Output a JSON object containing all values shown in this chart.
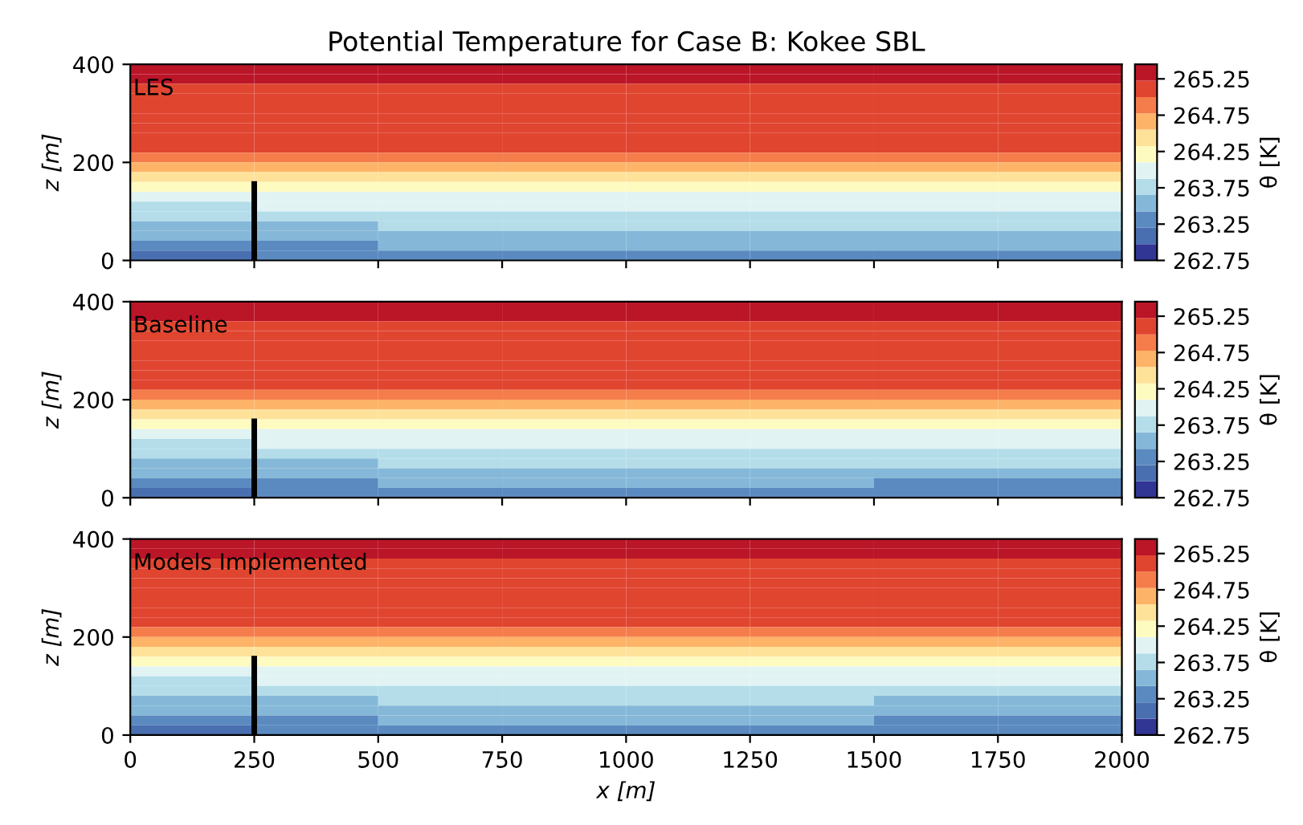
{
  "chart_data": [
    {
      "type": "heatmap",
      "title": "Potential Temperature for Case B: Kokee SBL",
      "ylabel": "z [m]",
      "clabel": "θ [K]",
      "annotations": [
        "LES"
      ],
      "tick_labels": "y",
      "x": [
        125,
        375,
        625,
        875,
        1125,
        1375,
        1625,
        1875
      ],
      "xlim": [
        0,
        2000
      ],
      "xticks": [
        0,
        250,
        500,
        750,
        1000,
        1250,
        1500,
        1750,
        2000
      ],
      "ylim": [
        0,
        400
      ],
      "yticks": [
        0,
        200,
        400
      ],
      "clim": [
        262.75,
        265.45
      ],
      "cticks": [
        262.75,
        263.25,
        263.75,
        264.25,
        264.75,
        265.25
      ],
      "colors": [
        "#313695",
        "#4a6fb0",
        "#5a8ac0",
        "#85b8d8",
        "#b4dde9",
        "#e2f3f3",
        "#fefbc0",
        "#fee29a",
        "#fdb468",
        "#f57d4b",
        "#e04530",
        "#bb1528"
      ],
      "ref_lines": [
        {
          "axis": "x",
          "value": 250,
          "color": "#000000"
        }
      ],
      "cells": [
        [
          265.34,
          265.34,
          265.34,
          265.34,
          265.34,
          265.34,
          265.34,
          265.34
        ],
        [
          265.34,
          265.34,
          265.34,
          265.34,
          265.34,
          265.34,
          265.34,
          265.34
        ],
        [
          265.11,
          265.11,
          265.11,
          265.11,
          265.11,
          265.11,
          265.11,
          265.11
        ],
        [
          265.11,
          265.11,
          265.11,
          265.11,
          265.11,
          265.11,
          265.11,
          265.11
        ],
        [
          265.11,
          265.11,
          265.11,
          265.11,
          265.11,
          265.11,
          265.11,
          265.11
        ],
        [
          265.11,
          265.11,
          265.11,
          265.11,
          265.11,
          265.11,
          265.11,
          265.11
        ],
        [
          265.11,
          265.11,
          265.11,
          265.11,
          265.11,
          265.11,
          265.11,
          265.11
        ],
        [
          265.11,
          265.11,
          265.11,
          265.11,
          265.11,
          265.11,
          265.11,
          265.11
        ],
        [
          265.11,
          265.11,
          265.11,
          265.11,
          265.11,
          265.11,
          265.11,
          265.11
        ],
        [
          264.89,
          264.89,
          264.89,
          264.89,
          264.89,
          264.89,
          264.89,
          264.89
        ],
        [
          264.66,
          264.66,
          264.66,
          264.66,
          264.66,
          264.66,
          264.66,
          264.66
        ],
        [
          264.44,
          264.44,
          264.44,
          264.44,
          264.44,
          264.44,
          264.44,
          264.44
        ],
        [
          264.21,
          264.21,
          264.21,
          264.21,
          264.21,
          264.21,
          264.21,
          264.21
        ],
        [
          263.99,
          263.99,
          263.99,
          263.99,
          263.99,
          263.99,
          263.99,
          263.99
        ],
        [
          263.76,
          263.99,
          263.99,
          263.99,
          263.99,
          263.99,
          263.99,
          263.99
        ],
        [
          263.76,
          263.76,
          263.76,
          263.76,
          263.76,
          263.76,
          263.76,
          263.76
        ],
        [
          263.54,
          263.54,
          263.76,
          263.76,
          263.76,
          263.76,
          263.76,
          263.76
        ],
        [
          263.54,
          263.54,
          263.54,
          263.54,
          263.54,
          263.54,
          263.54,
          263.54
        ],
        [
          263.31,
          263.31,
          263.54,
          263.54,
          263.54,
          263.54,
          263.54,
          263.54
        ],
        [
          263.09,
          263.31,
          263.31,
          263.31,
          263.31,
          263.31,
          263.31,
          263.31
        ]
      ]
    },
    {
      "type": "heatmap",
      "ylabel": "z [m]",
      "clabel": "θ [K]",
      "annotations": [
        "Baseline"
      ],
      "tick_labels": "y",
      "x": [
        125,
        375,
        625,
        875,
        1125,
        1375,
        1625,
        1875
      ],
      "xlim": [
        0,
        2000
      ],
      "xticks": [
        0,
        250,
        500,
        750,
        1000,
        1250,
        1500,
        1750,
        2000
      ],
      "ylim": [
        0,
        400
      ],
      "yticks": [
        0,
        200,
        400
      ],
      "clim": [
        262.75,
        265.45
      ],
      "cticks": [
        262.75,
        263.25,
        263.75,
        264.25,
        264.75,
        265.25
      ],
      "colors": [
        "#313695",
        "#4a6fb0",
        "#5a8ac0",
        "#85b8d8",
        "#b4dde9",
        "#e2f3f3",
        "#fefbc0",
        "#fee29a",
        "#fdb468",
        "#f57d4b",
        "#e04530",
        "#bb1528"
      ],
      "ref_lines": [
        {
          "axis": "x",
          "value": 250,
          "color": "#000000"
        }
      ],
      "cells": [
        [
          265.34,
          265.34,
          265.34,
          265.34,
          265.34,
          265.34,
          265.34,
          265.34
        ],
        [
          265.34,
          265.34,
          265.34,
          265.34,
          265.34,
          265.34,
          265.34,
          265.34
        ],
        [
          265.11,
          265.11,
          265.11,
          265.11,
          265.11,
          265.11,
          265.11,
          265.11
        ],
        [
          265.11,
          265.11,
          265.11,
          265.11,
          265.11,
          265.11,
          265.11,
          265.11
        ],
        [
          265.11,
          265.11,
          265.11,
          265.11,
          265.11,
          265.11,
          265.11,
          265.11
        ],
        [
          265.11,
          265.11,
          265.11,
          265.11,
          265.11,
          265.11,
          265.11,
          265.11
        ],
        [
          265.11,
          265.11,
          265.11,
          265.11,
          265.11,
          265.11,
          265.11,
          265.11
        ],
        [
          265.11,
          265.11,
          265.11,
          265.11,
          265.11,
          265.11,
          265.11,
          265.11
        ],
        [
          265.11,
          265.11,
          265.11,
          265.11,
          265.11,
          265.11,
          265.11,
          265.11
        ],
        [
          264.89,
          264.89,
          264.89,
          264.89,
          264.89,
          264.89,
          264.89,
          264.89
        ],
        [
          264.66,
          264.66,
          264.66,
          264.66,
          264.66,
          264.66,
          264.66,
          264.66
        ],
        [
          264.44,
          264.44,
          264.44,
          264.44,
          264.44,
          264.44,
          264.44,
          264.44
        ],
        [
          264.21,
          264.21,
          264.21,
          264.21,
          264.21,
          264.21,
          264.21,
          264.21
        ],
        [
          263.99,
          263.99,
          263.99,
          263.99,
          263.99,
          263.99,
          263.99,
          263.99
        ],
        [
          263.76,
          263.99,
          263.99,
          263.99,
          263.99,
          263.99,
          263.99,
          263.99
        ],
        [
          263.76,
          263.76,
          263.76,
          263.76,
          263.76,
          263.76,
          263.76,
          263.76
        ],
        [
          263.54,
          263.54,
          263.76,
          263.76,
          263.76,
          263.76,
          263.76,
          263.76
        ],
        [
          263.54,
          263.54,
          263.54,
          263.54,
          263.54,
          263.54,
          263.54,
          263.54
        ],
        [
          263.31,
          263.31,
          263.54,
          263.54,
          263.54,
          263.54,
          263.31,
          263.31
        ],
        [
          263.09,
          263.31,
          263.31,
          263.31,
          263.31,
          263.31,
          263.31,
          263.31
        ]
      ]
    },
    {
      "type": "heatmap",
      "xlabel": "x [m]",
      "ylabel": "z [m]",
      "clabel": "θ [K]",
      "annotations": [
        "Models Implemented"
      ],
      "x": [
        125,
        375,
        625,
        875,
        1125,
        1375,
        1625,
        1875
      ],
      "xlim": [
        0,
        2000
      ],
      "xticks": [
        0,
        250,
        500,
        750,
        1000,
        1250,
        1500,
        1750,
        2000
      ],
      "ylim": [
        0,
        400
      ],
      "yticks": [
        0,
        200,
        400
      ],
      "clim": [
        262.75,
        265.45
      ],
      "cticks": [
        262.75,
        263.25,
        263.75,
        264.25,
        264.75,
        265.25
      ],
      "colors": [
        "#313695",
        "#4a6fb0",
        "#5a8ac0",
        "#85b8d8",
        "#b4dde9",
        "#e2f3f3",
        "#fefbc0",
        "#fee29a",
        "#fdb468",
        "#f57d4b",
        "#e04530",
        "#bb1528"
      ],
      "ref_lines": [
        {
          "axis": "x",
          "value": 250,
          "color": "#000000"
        }
      ],
      "cells": [
        [
          265.34,
          265.34,
          265.34,
          265.34,
          265.34,
          265.34,
          265.34,
          265.34
        ],
        [
          265.34,
          265.34,
          265.34,
          265.34,
          265.34,
          265.34,
          265.34,
          265.34
        ],
        [
          265.11,
          265.11,
          265.11,
          265.11,
          265.11,
          265.11,
          265.11,
          265.11
        ],
        [
          265.11,
          265.11,
          265.11,
          265.11,
          265.11,
          265.11,
          265.11,
          265.11
        ],
        [
          265.11,
          265.11,
          265.11,
          265.11,
          265.11,
          265.11,
          265.11,
          265.11
        ],
        [
          265.11,
          265.11,
          265.11,
          265.11,
          265.11,
          265.11,
          265.11,
          265.11
        ],
        [
          265.11,
          265.11,
          265.11,
          265.11,
          265.11,
          265.11,
          265.11,
          265.11
        ],
        [
          265.11,
          265.11,
          265.11,
          265.11,
          265.11,
          265.11,
          265.11,
          265.11
        ],
        [
          265.11,
          265.11,
          265.11,
          265.11,
          265.11,
          265.11,
          265.11,
          265.11
        ],
        [
          264.89,
          264.89,
          264.89,
          264.89,
          264.89,
          264.89,
          264.89,
          264.89
        ],
        [
          264.66,
          264.66,
          264.66,
          264.66,
          264.66,
          264.66,
          264.66,
          264.66
        ],
        [
          264.44,
          264.44,
          264.44,
          264.44,
          264.44,
          264.44,
          264.44,
          264.44
        ],
        [
          264.21,
          264.21,
          264.21,
          264.21,
          264.21,
          264.21,
          264.21,
          264.21
        ],
        [
          263.99,
          263.99,
          263.99,
          263.99,
          263.99,
          263.99,
          263.99,
          263.99
        ],
        [
          263.76,
          263.99,
          263.99,
          263.99,
          263.99,
          263.99,
          263.99,
          263.99
        ],
        [
          263.76,
          263.76,
          263.76,
          263.76,
          263.76,
          263.76,
          263.76,
          263.76
        ],
        [
          263.54,
          263.54,
          263.76,
          263.76,
          263.76,
          263.76,
          263.54,
          263.54
        ],
        [
          263.54,
          263.54,
          263.54,
          263.54,
          263.54,
          263.54,
          263.54,
          263.54
        ],
        [
          263.31,
          263.31,
          263.54,
          263.54,
          263.54,
          263.54,
          263.31,
          263.31
        ],
        [
          263.09,
          263.31,
          263.31,
          263.31,
          263.31,
          263.31,
          263.31,
          263.31
        ]
      ]
    }
  ]
}
